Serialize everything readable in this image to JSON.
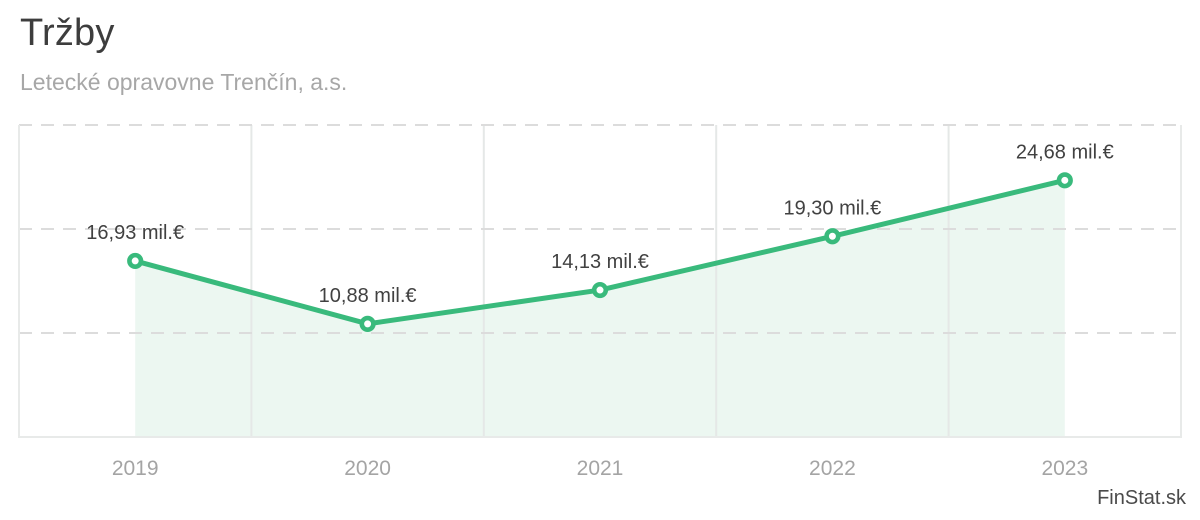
{
  "chart_data": {
    "type": "area",
    "title": "Tržby",
    "subtitle": "Letecké opravovne Trenčín, a.s.",
    "categories": [
      "2019",
      "2020",
      "2021",
      "2022",
      "2023"
    ],
    "values": [
      16.93,
      10.88,
      14.13,
      19.3,
      24.68
    ],
    "labels": [
      "16,93 mil.€",
      "10,88 mil.€",
      "14,13 mil.€",
      "19,30 mil.€",
      "24,68 mil.€"
    ],
    "unit": "mil.€",
    "xlabel": "",
    "ylabel": "",
    "ylim": [
      0,
      30
    ],
    "gridlines_y": [
      10,
      20,
      30
    ],
    "grid": true,
    "legend": "none",
    "marker": "circle"
  },
  "footer": {
    "watermark": "FinStat.sk"
  },
  "colors": {
    "line": "#39ba7c",
    "marker_fill": "#ffffff",
    "area_fill": "#ecf7f1",
    "h_gridline": "#dcdcdc",
    "v_gridline": "#e5e8e7",
    "plot_border": "#e8eae9",
    "title_text": "#3d3d3d",
    "subtitle_text": "#a7a7a7",
    "data_label_text": "#414141",
    "x_label_text": "#a4a4a4",
    "watermark_text": "#4a4a4a"
  }
}
